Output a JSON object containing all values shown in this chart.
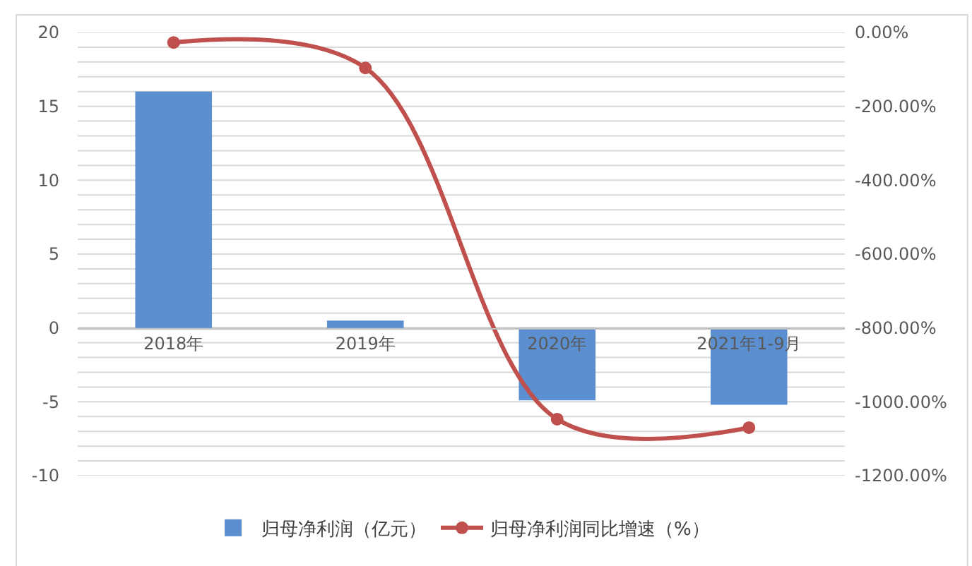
{
  "chart_data": {
    "type": "bar",
    "categories": [
      "2018年",
      "2019年",
      "2020年",
      "2021年1-9月"
    ],
    "series": [
      {
        "name": "归母净利润（亿元）",
        "color": "#5b8fd0",
        "values": [
          16.0,
          0.5,
          -4.9,
          -5.2
        ]
      },
      {
        "name": "归母净利润同比增速（%）",
        "type": "line",
        "axis": "y2",
        "color": "#c0504d",
        "values": [
          -27,
          -96,
          -1047,
          -1070
        ]
      }
    ],
    "ylim": [
      -10,
      20
    ],
    "yticks": [
      -10,
      {
        "value": -9,
        "label": null
      },
      {
        "value": -8,
        "label": null
      },
      {
        "value": -7,
        "label": null
      },
      {
        "value": -6,
        "label": null
      },
      -5,
      {
        "value": -4,
        "label": null
      },
      {
        "value": -3,
        "label": null
      },
      {
        "value": -2,
        "label": null
      },
      {
        "value": -1,
        "label": null
      },
      0,
      {
        "value": 1,
        "label": null
      },
      {
        "value": 2,
        "label": null
      },
      {
        "value": 3,
        "label": null
      },
      {
        "value": 4,
        "label": null
      },
      5,
      {
        "value": 6,
        "label": null
      },
      {
        "value": 7,
        "label": null
      },
      {
        "value": 8,
        "label": null
      },
      {
        "value": 9,
        "label": null
      },
      10,
      {
        "value": 11,
        "label": null
      },
      {
        "value": 12,
        "label": null
      },
      {
        "value": 13,
        "label": null
      },
      {
        "value": 14,
        "label": null
      },
      15,
      {
        "value": 16,
        "label": null
      },
      {
        "value": 17,
        "label": null
      },
      {
        "value": 18,
        "label": null
      },
      {
        "value": 19,
        "label": null
      },
      20
    ],
    "y2lim": [
      -1200,
      0
    ],
    "y2ticks": [
      {
        "value": -1200,
        "label": "-1200.00%"
      },
      {
        "value": -1000,
        "label": "-1000.00%"
      },
      {
        "value": -800,
        "label": "-800.00%"
      },
      {
        "value": -600,
        "label": "-600.00%"
      },
      {
        "value": -400,
        "label": "-400.00%"
      },
      {
        "value": -200,
        "label": "-200.00%"
      },
      {
        "value": 0,
        "label": "0.00%"
      }
    ],
    "grid": "y",
    "legend": "bottom",
    "marker": "circle",
    "line_style": "solid"
  }
}
